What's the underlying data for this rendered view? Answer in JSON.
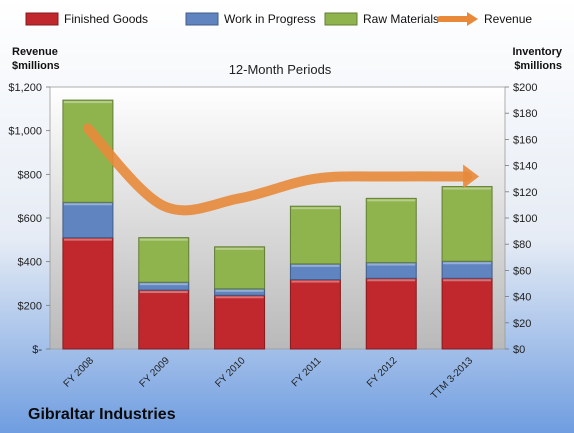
{
  "company_name": "Gibraltar Industries",
  "chart_data": {
    "type": "bar",
    "stacked": true,
    "title": "12-Month Periods",
    "ylabel_left": "Revenue $millions",
    "ylabel_right": "Inventory $millions",
    "left_axis": {
      "ylim": [
        0,
        1200
      ],
      "ticks": [
        0,
        200,
        400,
        600,
        800,
        1000,
        1200
      ],
      "tick_labels": [
        "$-",
        "$200",
        "$400",
        "$600",
        "$800",
        "$1,000",
        "$1,200"
      ]
    },
    "right_axis": {
      "ylim": [
        0,
        200
      ],
      "ticks": [
        0,
        20,
        40,
        60,
        80,
        100,
        120,
        140,
        160,
        180,
        200
      ],
      "tick_labels": [
        "$0",
        "$20",
        "$40",
        "$60",
        "$80",
        "$100",
        "$120",
        "$140",
        "$160",
        "$180",
        "$200"
      ]
    },
    "categories": [
      "FY 2008",
      "FY 2009",
      "FY 2010",
      "FY 2011",
      "FY 2012",
      "TTM 3-2013"
    ],
    "series": [
      {
        "name": "Finished Goods",
        "axis": "right",
        "color": "#c0282d",
        "values": [
          85,
          45,
          41,
          53,
          54,
          54
        ]
      },
      {
        "name": "Work in Progress",
        "axis": "right",
        "color": "#5f84c0",
        "values": [
          27,
          6,
          5,
          12,
          12,
          13
        ]
      },
      {
        "name": "Raw Materials",
        "axis": "right",
        "color": "#8fb44d",
        "values": [
          78,
          34,
          32,
          44,
          49,
          57
        ]
      },
      {
        "name": "Revenue",
        "axis": "left",
        "type": "line",
        "color": "#e8893a",
        "values": [
          1010,
          655,
          690,
          780,
          790,
          790
        ]
      }
    ],
    "legend_position": "top",
    "grid": false
  }
}
